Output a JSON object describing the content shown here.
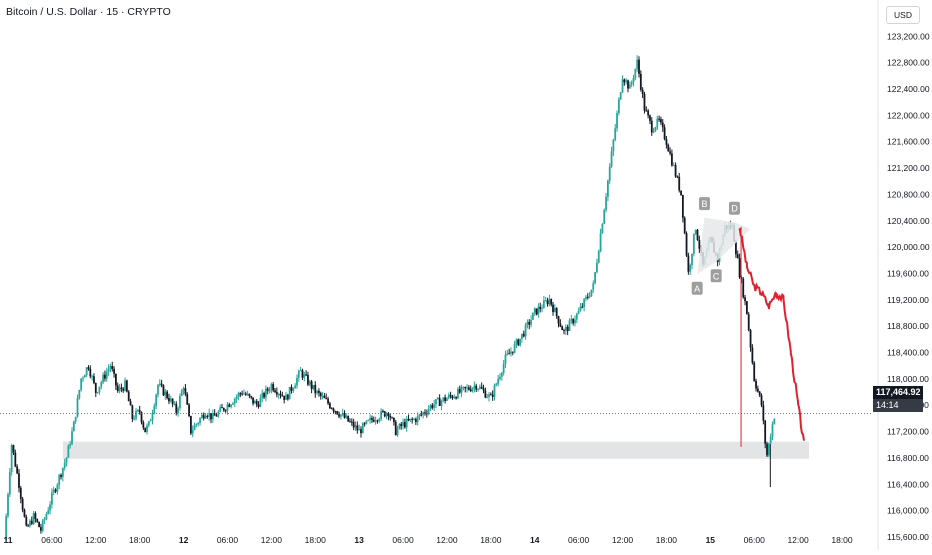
{
  "header": {
    "title": "Bitcoin / U.S. Dollar · 15 · CRYPTO",
    "currency": "USD"
  },
  "price_tag": {
    "price": "117,464.92",
    "countdown": "14:14"
  },
  "pattern_labels": [
    "A",
    "B",
    "C",
    "D"
  ],
  "colors": {
    "up": "#26a69a",
    "down": "#131722",
    "projection": "#e0202c",
    "zone": "#e3e4e6",
    "pattern_fill": "#e6e7e9",
    "marker": "#9e9e9e",
    "price_line": "#555555"
  },
  "chart_data": {
    "type": "candlestick",
    "symbol": "Bitcoin / U.S. Dollar",
    "interval": "15",
    "x_axis": {
      "tick_labels": [
        "11",
        "06:00",
        "12:00",
        "18:00",
        "12",
        "06:00",
        "12:00",
        "18:00",
        "13",
        "06:00",
        "12:00",
        "18:00",
        "14",
        "06:00",
        "12:00",
        "18:00",
        "15",
        "06:00",
        "12:00",
        "18:00"
      ],
      "tick_hours": [
        0,
        6,
        12,
        18,
        24,
        30,
        36,
        42,
        48,
        54,
        60,
        66,
        72,
        78,
        84,
        90,
        96,
        102,
        108,
        114
      ]
    },
    "y_axis": {
      "ticks": [
        115600,
        116000,
        116400,
        116800,
        117200,
        117600,
        118000,
        118400,
        118800,
        119200,
        119600,
        120000,
        120400,
        120800,
        121200,
        121600,
        122000,
        122400,
        122800,
        123200
      ],
      "tick_labels": [
        "115,600.00",
        "116,000.00",
        "116,400.00",
        "116,800.00",
        "117,200.00",
        "117,600.00",
        "118,000.00",
        "118,400.00",
        "118,800.00",
        "119,200.00",
        "119,600.00",
        "120,000.00",
        "120,400.00",
        "120,800.00",
        "121,200.00",
        "121,600.00",
        "122,000.00",
        "122,400.00",
        "122,800.00",
        "123,200.00"
      ],
      "range": [
        115500,
        123400
      ]
    },
    "last_price": 117464.92,
    "price_path": [
      [
        -0.5,
        115550
      ],
      [
        0.5,
        117000
      ],
      [
        1.5,
        116400
      ],
      [
        2.5,
        115700
      ],
      [
        3.5,
        115900
      ],
      [
        4.5,
        115700
      ],
      [
        6,
        116200
      ],
      [
        8,
        116800
      ],
      [
        9,
        117300
      ],
      [
        10,
        118000
      ],
      [
        11,
        118200
      ],
      [
        12,
        117800
      ],
      [
        13,
        118000
      ],
      [
        14,
        118200
      ],
      [
        15,
        117800
      ],
      [
        16,
        117900
      ],
      [
        17,
        117400
      ],
      [
        18,
        117500
      ],
      [
        18.7,
        117200
      ],
      [
        19.3,
        117300
      ],
      [
        20.5,
        117900
      ],
      [
        22,
        117700
      ],
      [
        23,
        117500
      ],
      [
        24,
        117900
      ],
      [
        25,
        117200
      ],
      [
        27,
        117500
      ],
      [
        28,
        117400
      ],
      [
        30,
        117600
      ],
      [
        32,
        117800
      ],
      [
        34,
        117600
      ],
      [
        36,
        117900
      ],
      [
        38,
        117700
      ],
      [
        40,
        118100
      ],
      [
        42,
        117800
      ],
      [
        44,
        117600
      ],
      [
        46,
        117400
      ],
      [
        48,
        117200
      ],
      [
        50,
        117400
      ],
      [
        52,
        117500
      ],
      [
        53,
        117200
      ],
      [
        54,
        117300
      ],
      [
        56,
        117400
      ],
      [
        58,
        117600
      ],
      [
        60,
        117700
      ],
      [
        62,
        117800
      ],
      [
        64,
        117900
      ],
      [
        66,
        117700
      ],
      [
        68,
        118300
      ],
      [
        70,
        118600
      ],
      [
        72,
        119000
      ],
      [
        74,
        119200
      ],
      [
        76,
        118700
      ],
      [
        78,
        119000
      ],
      [
        80,
        119400
      ],
      [
        82,
        121000
      ],
      [
        84,
        122600
      ],
      [
        85,
        122400
      ],
      [
        86,
        122800
      ],
      [
        87,
        122100
      ],
      [
        88,
        121800
      ],
      [
        89,
        121900
      ],
      [
        90,
        121600
      ],
      [
        92,
        120800
      ],
      [
        93,
        119600
      ],
      [
        94,
        120300
      ],
      [
        95,
        119700
      ],
      [
        96,
        120100
      ],
      [
        97,
        119800
      ],
      [
        98,
        120300
      ],
      [
        99,
        120300
      ],
      [
        100,
        119600
      ],
      [
        101,
        119000
      ],
      [
        102,
        118000
      ],
      [
        103,
        117600
      ],
      [
        103.7,
        116800
      ],
      [
        104.3,
        117200
      ],
      [
        104.8,
        117460
      ]
    ],
    "projection_path": [
      [
        100,
        120300
      ],
      [
        101,
        119700
      ],
      [
        102,
        119400
      ],
      [
        103,
        119300
      ],
      [
        104,
        119100
      ],
      [
        105,
        119300
      ],
      [
        106,
        119200
      ],
      [
        107,
        118400
      ],
      [
        108,
        117600
      ],
      [
        108.8,
        117000
      ]
    ],
    "range_zone": {
      "x0": 7.5,
      "x1": 109.5,
      "y0": 116780,
      "y1": 117040
    },
    "pattern_points": {
      "A": [
        94.2,
        119580
      ],
      "B": [
        95.2,
        120440
      ],
      "C": [
        96.8,
        119770
      ],
      "D": [
        99.3,
        120370
      ],
      "tip": [
        101.5,
        120270
      ]
    },
    "vertical_marker": {
      "x": 100.2,
      "y_top": 120300,
      "y_bottom": 116960
    },
    "wick_low": [
      104.2,
      116350
    ]
  }
}
